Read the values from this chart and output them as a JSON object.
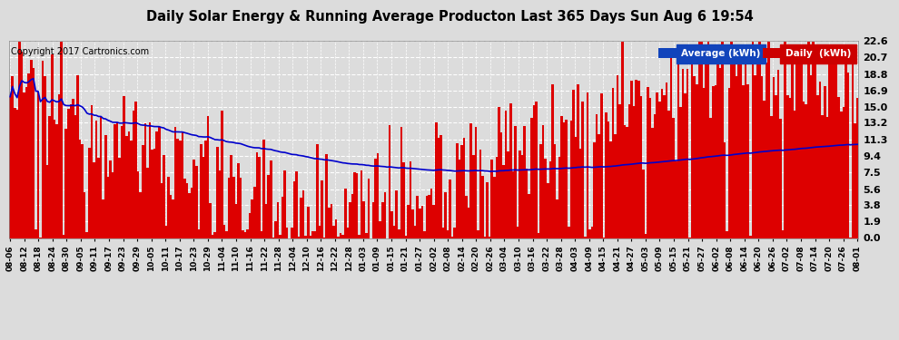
{
  "title": "Daily Solar Energy & Running Average Producton Last 365 Days Sun Aug 6 19:54",
  "copyright": "Copyright 2017 Cartronics.com",
  "yticks": [
    0.0,
    1.9,
    3.8,
    5.6,
    7.5,
    9.4,
    11.3,
    13.2,
    15.0,
    16.9,
    18.8,
    20.7,
    22.6
  ],
  "ymax": 22.6,
  "bar_color": "#dd0000",
  "avg_color": "#0000cc",
  "legend_avg_text": "Average (kWh)",
  "legend_daily_text": "Daily  (kWh)",
  "background_color": "#dcdcdc",
  "grid_color": "#ffffff",
  "n_days": 365,
  "xtick_labels": [
    "08-06",
    "08-12",
    "08-18",
    "08-24",
    "08-30",
    "09-05",
    "09-11",
    "09-17",
    "09-23",
    "09-29",
    "10-05",
    "10-11",
    "10-17",
    "10-23",
    "10-29",
    "11-04",
    "11-10",
    "11-16",
    "11-22",
    "11-28",
    "12-04",
    "12-10",
    "12-16",
    "12-22",
    "12-28",
    "01-03",
    "01-09",
    "01-15",
    "01-21",
    "01-27",
    "02-02",
    "02-08",
    "02-14",
    "02-20",
    "02-26",
    "03-04",
    "03-10",
    "03-16",
    "03-22",
    "03-28",
    "04-03",
    "04-09",
    "04-15",
    "04-21",
    "04-27",
    "05-03",
    "05-09",
    "05-15",
    "05-21",
    "05-27",
    "06-02",
    "06-08",
    "06-14",
    "06-20",
    "06-26",
    "07-02",
    "07-08",
    "07-14",
    "07-20",
    "07-26",
    "08-01"
  ]
}
